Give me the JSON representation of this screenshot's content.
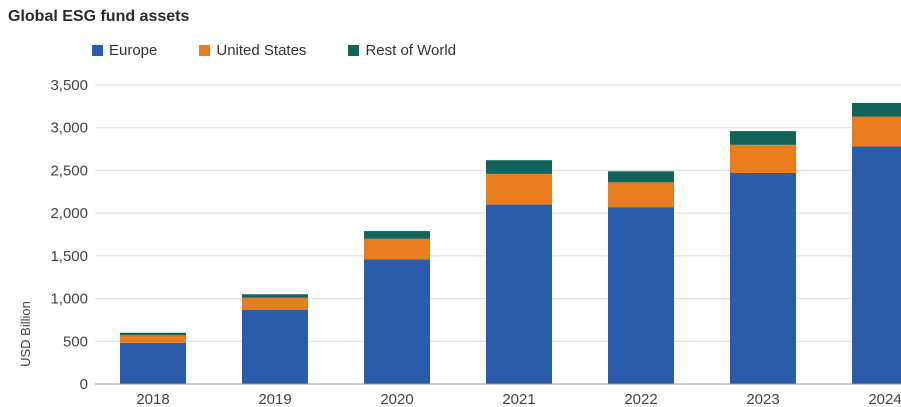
{
  "chart_data": {
    "type": "bar",
    "stacked": true,
    "title": "Global ESG fund assets",
    "xlabel": "",
    "ylabel": "USD Billion",
    "ylim": [
      0,
      3500
    ],
    "yticks": [
      "0",
      "500",
      "1,000",
      "1,500",
      "2,000",
      "2,500",
      "3,000",
      "3,500"
    ],
    "categories": [
      "2018",
      "2019",
      "2020",
      "2021",
      "2022",
      "2023",
      "2024"
    ],
    "series": [
      {
        "name": "Europe",
        "color": "#2a5caa",
        "values": [
          480,
          870,
          1460,
          2100,
          2070,
          2470,
          2780
        ]
      },
      {
        "name": "United States",
        "color": "#e87d1e",
        "values": [
          90,
          140,
          240,
          360,
          290,
          330,
          350
        ]
      },
      {
        "name": "Rest of World",
        "color": "#12635a",
        "values": [
          30,
          40,
          90,
          160,
          130,
          160,
          160
        ]
      }
    ],
    "legend_position": "top",
    "grid": true
  }
}
